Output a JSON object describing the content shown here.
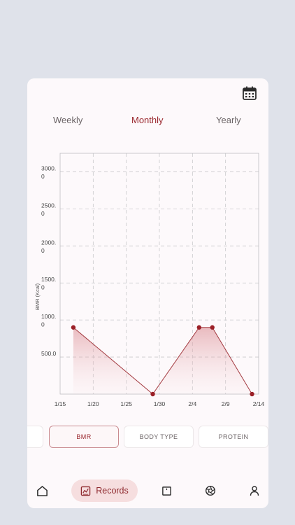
{
  "period_tabs": [
    {
      "label": "Weekly",
      "active": false
    },
    {
      "label": "Monthly",
      "active": true
    },
    {
      "label": "Yearly",
      "active": false
    }
  ],
  "chart_data": {
    "type": "line",
    "title": "",
    "xlabel": "",
    "ylabel": "BMR (Kcal)",
    "x_tick_labels": [
      "1/15",
      "1/20",
      "1/25",
      "1/30",
      "2/4",
      "2/9",
      "2/14"
    ],
    "y_tick_labels": [
      [
        "500.0"
      ],
      [
        "1000.",
        "0"
      ],
      [
        "1500.",
        "0"
      ],
      [
        "2000.",
        "0"
      ],
      [
        "2500.",
        "0"
      ],
      [
        "3000.",
        "0"
      ]
    ],
    "xlim": [
      "1/15",
      "2/14"
    ],
    "ylim": [
      0,
      3250
    ],
    "grid": true,
    "series": [
      {
        "values": [
          {
            "x": "1/17",
            "y": 900
          },
          {
            "x": "1/29",
            "y": 0
          },
          {
            "x": "2/5",
            "y": 900
          },
          {
            "x": "2/7",
            "y": 900
          },
          {
            "x": "2/13",
            "y": 0
          }
        ]
      }
    ]
  },
  "metric_tabs": [
    {
      "label": "",
      "active": false
    },
    {
      "label": "BMR",
      "active": true
    },
    {
      "label": "BODY TYPE",
      "active": false
    },
    {
      "label": "PROTEIN",
      "active": false
    }
  ],
  "bottom_nav": {
    "records_label": "Records"
  },
  "colors": {
    "accent": "#9b2a30",
    "line": "#a33a40",
    "point": "#9b1f27",
    "grid": "#c9c9cc",
    "background": "#dfe2ea",
    "card": "#fdf9fb"
  },
  "icons": [
    "calendar-icon",
    "home-icon",
    "records-chart-icon",
    "note-icon",
    "aperture-icon",
    "profile-icon"
  ]
}
